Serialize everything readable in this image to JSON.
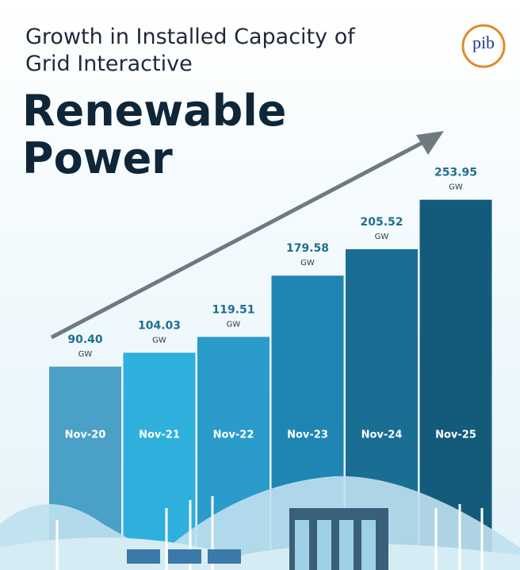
{
  "chart_data": {
    "type": "bar",
    "title": "Growth in Installed Capacity of Grid Interactive",
    "subtitle": "Renewable Power",
    "logo": "pib",
    "unit": "GW",
    "categories": [
      "Nov-20",
      "Nov-21",
      "Nov-22",
      "Nov-23",
      "Nov-24",
      "Nov-25"
    ],
    "values": [
      90.4,
      104.03,
      119.51,
      179.58,
      205.52,
      253.95
    ],
    "value_labels": [
      "90.40",
      "104.03",
      "119.51",
      "179.58",
      "205.52",
      "253.95"
    ],
    "colors": [
      "#4aa0c6",
      "#2fb0dc",
      "#2a9bca",
      "#1f85b3",
      "#1a6e94",
      "#145b7b"
    ],
    "ylim": [
      0,
      270
    ]
  }
}
